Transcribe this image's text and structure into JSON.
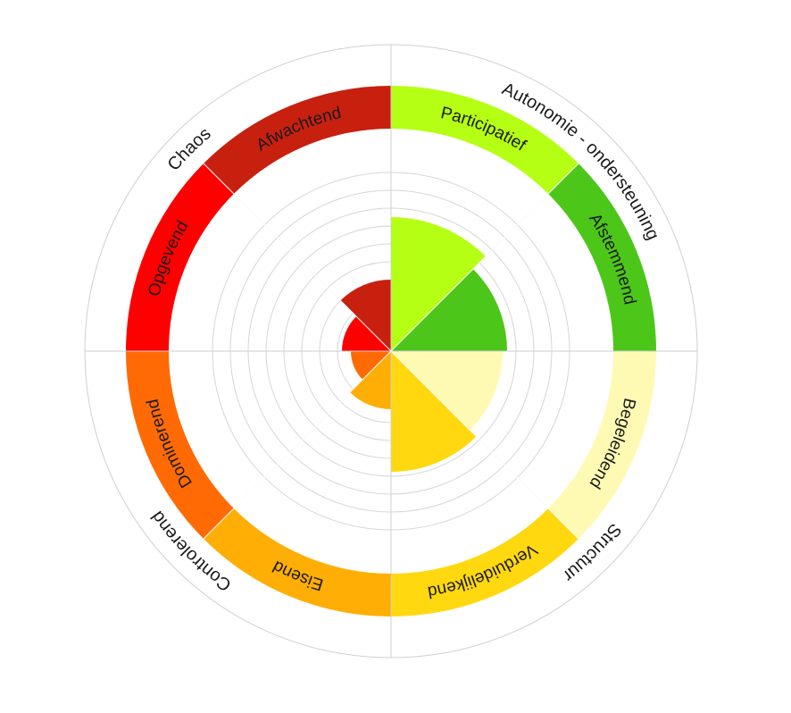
{
  "chart_data": {
    "type": "polar-area",
    "title": "",
    "rlim": [
      0,
      10
    ],
    "grid_rings": 10,
    "grid": true,
    "legend": "none",
    "segments": [
      {
        "label": "Participatief",
        "value": 7.5,
        "color": "#b5ff14"
      },
      {
        "label": "Afstemmend",
        "value": 6.5,
        "color": "#4dc61a"
      },
      {
        "label": "Begeleidend",
        "value": 6.25,
        "color": "#fffab3"
      },
      {
        "label": "Verduidelijkend",
        "value": 6.75,
        "color": "#ffd80f"
      },
      {
        "label": "Eisend",
        "value": 3.25,
        "color": "#ffae05"
      },
      {
        "label": "Dominerend",
        "value": 2.25,
        "color": "#ff6a05"
      },
      {
        "label": "Opgevend",
        "value": 2.75,
        "color": "#ff0000"
      },
      {
        "label": "Afwachtend",
        "value": 4.0,
        "color": "#c8200f"
      }
    ],
    "quadrants": [
      "Autonomie - ondersteuning",
      "Structuur",
      "Controlerend",
      "Chaos"
    ]
  }
}
